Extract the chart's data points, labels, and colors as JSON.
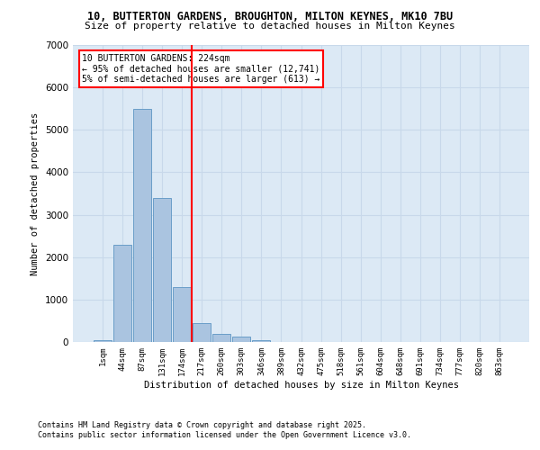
{
  "title_line1": "10, BUTTERTON GARDENS, BROUGHTON, MILTON KEYNES, MK10 7BU",
  "title_line2": "Size of property relative to detached houses in Milton Keynes",
  "xlabel": "Distribution of detached houses by size in Milton Keynes",
  "ylabel": "Number of detached properties",
  "categories": [
    "1sqm",
    "44sqm",
    "87sqm",
    "131sqm",
    "174sqm",
    "217sqm",
    "260sqm",
    "303sqm",
    "346sqm",
    "389sqm",
    "432sqm",
    "475sqm",
    "518sqm",
    "561sqm",
    "604sqm",
    "648sqm",
    "691sqm",
    "734sqm",
    "777sqm",
    "820sqm",
    "863sqm"
  ],
  "values": [
    50,
    2300,
    5500,
    3400,
    1300,
    450,
    200,
    130,
    50,
    10,
    5,
    3,
    2,
    1,
    1,
    1,
    0,
    0,
    0,
    0,
    0
  ],
  "bar_color": "#aac4e0",
  "bar_edge_color": "#6a9ec8",
  "grid_color": "#c8d8ea",
  "background_color": "#dce9f5",
  "vline_index": 5,
  "vline_color": "red",
  "annotation_text": "10 BUTTERTON GARDENS: 224sqm\n← 95% of detached houses are smaller (12,741)\n5% of semi-detached houses are larger (613) →",
  "annotation_box_color": "white",
  "annotation_box_edge_color": "red",
  "ylim": [
    0,
    7000
  ],
  "yticks": [
    0,
    1000,
    2000,
    3000,
    4000,
    5000,
    6000,
    7000
  ],
  "footer_line1": "Contains HM Land Registry data © Crown copyright and database right 2025.",
  "footer_line2": "Contains public sector information licensed under the Open Government Licence v3.0."
}
